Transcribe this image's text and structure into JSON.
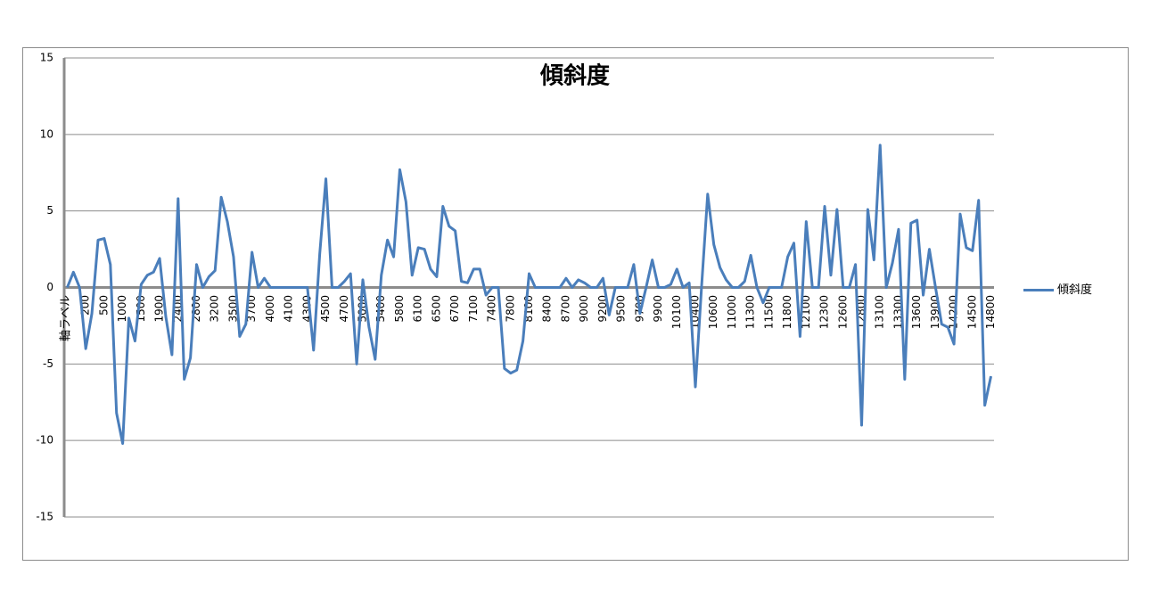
{
  "chart_data": {
    "type": "line",
    "title": "傾斜度",
    "x_label": "軸ラベル",
    "categories": [
      null,
      null,
      null,
      "200",
      null,
      null,
      "500",
      null,
      null,
      "1000",
      null,
      null,
      "1500",
      null,
      null,
      "1900",
      null,
      null,
      "2400",
      null,
      null,
      "2800",
      null,
      null,
      "3200",
      null,
      null,
      "3500",
      null,
      null,
      "3700",
      null,
      null,
      "4000",
      null,
      null,
      "4100",
      null,
      null,
      "4300",
      null,
      null,
      "4500",
      null,
      null,
      "4700",
      null,
      null,
      "5000",
      null,
      null,
      "5400",
      null,
      null,
      "5800",
      null,
      null,
      "6100",
      null,
      null,
      "6500",
      null,
      null,
      "6700",
      null,
      null,
      "7100",
      null,
      null,
      "7400",
      null,
      null,
      "7800",
      null,
      null,
      "8100",
      null,
      null,
      "8400",
      null,
      null,
      "8700",
      null,
      null,
      "9000",
      null,
      null,
      "9200",
      null,
      null,
      "9500",
      null,
      null,
      "9700",
      null,
      null,
      "9900",
      null,
      null,
      "10100",
      null,
      null,
      "10400",
      null,
      null,
      "10600",
      null,
      null,
      "11000",
      null,
      null,
      "11300",
      null,
      null,
      "11500",
      null,
      null,
      "11800",
      null,
      null,
      "12100",
      null,
      null,
      "12300",
      null,
      null,
      "12600",
      null,
      null,
      "12800",
      null,
      null,
      "13100",
      null,
      null,
      "13300",
      null,
      null,
      "13600",
      null,
      null,
      "13900",
      null,
      null,
      "14200",
      null,
      null,
      "14500",
      null,
      null,
      "14800"
    ],
    "series": [
      {
        "name": "傾斜度",
        "color": "#4a7ebb",
        "values": [
          0,
          1.0,
          0,
          -4.0,
          -1.7,
          3.1,
          3.2,
          1.5,
          -8.2,
          -10.2,
          -2.0,
          -3.5,
          0.2,
          0.8,
          1.0,
          1.9,
          -1.9,
          -4.4,
          5.8,
          -6.0,
          -4.6,
          1.5,
          0,
          0.7,
          1.1,
          5.9,
          4.3,
          2.0,
          -3.2,
          -2.4,
          2.3,
          0,
          0.6,
          0,
          0,
          0,
          0,
          0,
          0,
          0,
          -4.1,
          2.2,
          7.1,
          0,
          0,
          0.4,
          0.9,
          -5.0,
          0.5,
          -2.6,
          -4.7,
          0.8,
          3.1,
          2.0,
          7.7,
          5.6,
          0.8,
          2.6,
          2.5,
          1.2,
          0.7,
          5.3,
          4.0,
          3.7,
          0.4,
          0.3,
          1.2,
          1.2,
          -0.5,
          0,
          0,
          -5.3,
          -5.6,
          -5.4,
          -3.5,
          0.9,
          0,
          0,
          0,
          0,
          0,
          0.6,
          0,
          0.5,
          0.3,
          0,
          0,
          0.6,
          -1.8,
          0,
          0,
          0,
          1.5,
          -1.7,
          0,
          1.8,
          0,
          0,
          0.2,
          1.2,
          0,
          0.3,
          -6.5,
          0,
          6.1,
          2.8,
          1.3,
          0.5,
          0,
          0,
          0.4,
          2.1,
          0,
          -1.0,
          0,
          0,
          0,
          2.0,
          2.9,
          -3.2,
          4.3,
          0,
          0,
          5.3,
          0.8,
          5.1,
          0,
          0,
          1.5,
          -9.0,
          5.1,
          1.8,
          9.3,
          0,
          1.6,
          3.8,
          -6.0,
          4.2,
          4.4,
          -0.5,
          2.5,
          0,
          -2.4,
          -2.6,
          -3.7,
          4.8,
          2.6,
          2.4,
          5.7,
          -7.7,
          -5.8
        ]
      }
    ],
    "ylim": [
      -15,
      15
    ],
    "yticks": [
      -15,
      -10,
      -5,
      0,
      5,
      10,
      15
    ],
    "grid": true,
    "legend": "right"
  }
}
